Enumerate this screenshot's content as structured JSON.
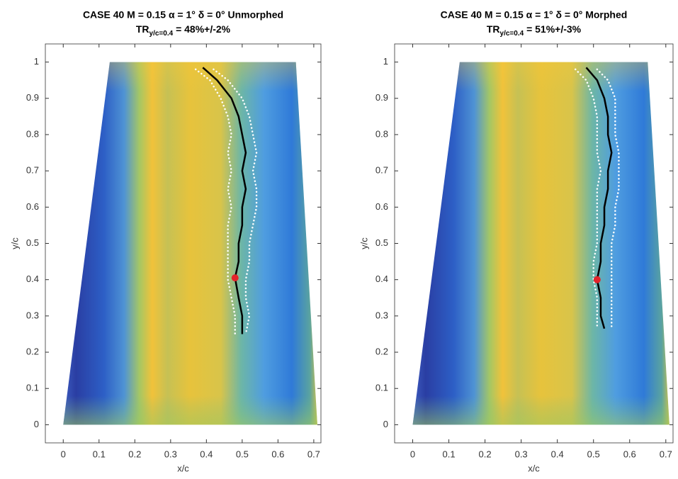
{
  "chart_data": [
    {
      "type": "line",
      "title": "CASE  40  M = 0.15  α = 1°  δ = 0°  Unmorphed",
      "subtitle": {
        "text": "TR",
        "subscript": "y/c=0.4",
        "rest": " = 48%+/-2%"
      },
      "x_label": "x/c",
      "y_label": "y/c",
      "xlim": [
        -0.05,
        0.72
      ],
      "ylim": [
        -0.05,
        1.05
      ],
      "xticks": [
        0,
        0.1,
        0.2,
        0.3,
        0.4,
        0.5,
        0.6,
        0.7
      ],
      "yticks": [
        0,
        0.1,
        0.2,
        0.3,
        0.4,
        0.5,
        0.6,
        0.7,
        0.8,
        0.9,
        1
      ],
      "series": [
        {
          "style": "solid",
          "color": "#000000",
          "x": [
            0.39,
            0.43,
            0.47,
            0.49,
            0.5,
            0.51,
            0.5,
            0.51,
            0.5,
            0.5,
            0.49,
            0.49,
            0.48,
            0.49,
            0.5,
            0.5
          ],
          "values": [
            0.985,
            0.95,
            0.9,
            0.85,
            0.8,
            0.75,
            0.7,
            0.65,
            0.6,
            0.55,
            0.5,
            0.45,
            0.405,
            0.35,
            0.3,
            0.25
          ]
        },
        {
          "style": "dotted",
          "color": "#ffffff",
          "x": [
            0.37,
            0.41,
            0.44,
            0.46,
            0.47,
            0.46,
            0.47,
            0.46,
            0.47,
            0.46,
            0.46,
            0.46,
            0.46,
            0.47,
            0.48,
            0.48
          ],
          "values": [
            0.98,
            0.95,
            0.9,
            0.85,
            0.8,
            0.75,
            0.7,
            0.65,
            0.6,
            0.55,
            0.5,
            0.45,
            0.4,
            0.35,
            0.3,
            0.25
          ]
        },
        {
          "style": "dotted",
          "color": "#ffffff",
          "x": [
            0.42,
            0.46,
            0.5,
            0.52,
            0.53,
            0.54,
            0.53,
            0.54,
            0.54,
            0.53,
            0.52,
            0.52,
            0.51,
            0.51,
            0.52,
            0.51
          ],
          "values": [
            0.98,
            0.95,
            0.9,
            0.85,
            0.8,
            0.75,
            0.7,
            0.65,
            0.6,
            0.55,
            0.5,
            0.45,
            0.4,
            0.35,
            0.3,
            0.25
          ]
        },
        {
          "style": "marker",
          "color": "#e3242b",
          "x": [
            0.48
          ],
          "values": [
            0.405
          ]
        }
      ]
    },
    {
      "type": "line",
      "title": "CASE  40  M = 0.15  α = 1°  δ = 0°  Morphed",
      "subtitle": {
        "text": "TR",
        "subscript": "y/c=0.4",
        "rest": " = 51%+/-3%"
      },
      "x_label": "x/c",
      "y_label": "y/c",
      "xlim": [
        -0.05,
        0.72
      ],
      "ylim": [
        -0.05,
        1.05
      ],
      "xticks": [
        0,
        0.1,
        0.2,
        0.3,
        0.4,
        0.5,
        0.6,
        0.7
      ],
      "yticks": [
        0,
        0.1,
        0.2,
        0.3,
        0.4,
        0.5,
        0.6,
        0.7,
        0.8,
        0.9,
        1
      ],
      "series": [
        {
          "style": "solid",
          "color": "#000000",
          "x": [
            0.48,
            0.51,
            0.53,
            0.54,
            0.54,
            0.55,
            0.54,
            0.54,
            0.53,
            0.53,
            0.52,
            0.52,
            0.51,
            0.52,
            0.52,
            0.53
          ],
          "values": [
            0.985,
            0.95,
            0.9,
            0.85,
            0.8,
            0.75,
            0.7,
            0.65,
            0.6,
            0.55,
            0.5,
            0.45,
            0.4,
            0.35,
            0.3,
            0.265
          ]
        },
        {
          "style": "dotted",
          "color": "#ffffff",
          "x": [
            0.45,
            0.48,
            0.5,
            0.51,
            0.51,
            0.51,
            0.52,
            0.51,
            0.51,
            0.51,
            0.51,
            0.5,
            0.5,
            0.51,
            0.51,
            0.51
          ],
          "values": [
            0.98,
            0.95,
            0.9,
            0.85,
            0.8,
            0.75,
            0.7,
            0.65,
            0.6,
            0.55,
            0.5,
            0.45,
            0.4,
            0.35,
            0.3,
            0.265
          ]
        },
        {
          "style": "dotted",
          "color": "#ffffff",
          "x": [
            0.51,
            0.54,
            0.56,
            0.56,
            0.56,
            0.57,
            0.57,
            0.57,
            0.56,
            0.56,
            0.55,
            0.55,
            0.55,
            0.55,
            0.55,
            0.55
          ],
          "values": [
            0.98,
            0.95,
            0.9,
            0.85,
            0.8,
            0.75,
            0.7,
            0.65,
            0.6,
            0.55,
            0.5,
            0.45,
            0.4,
            0.35,
            0.3,
            0.265
          ]
        },
        {
          "style": "marker",
          "color": "#e3242b",
          "x": [
            0.51
          ],
          "values": [
            0.4
          ]
        }
      ]
    }
  ]
}
